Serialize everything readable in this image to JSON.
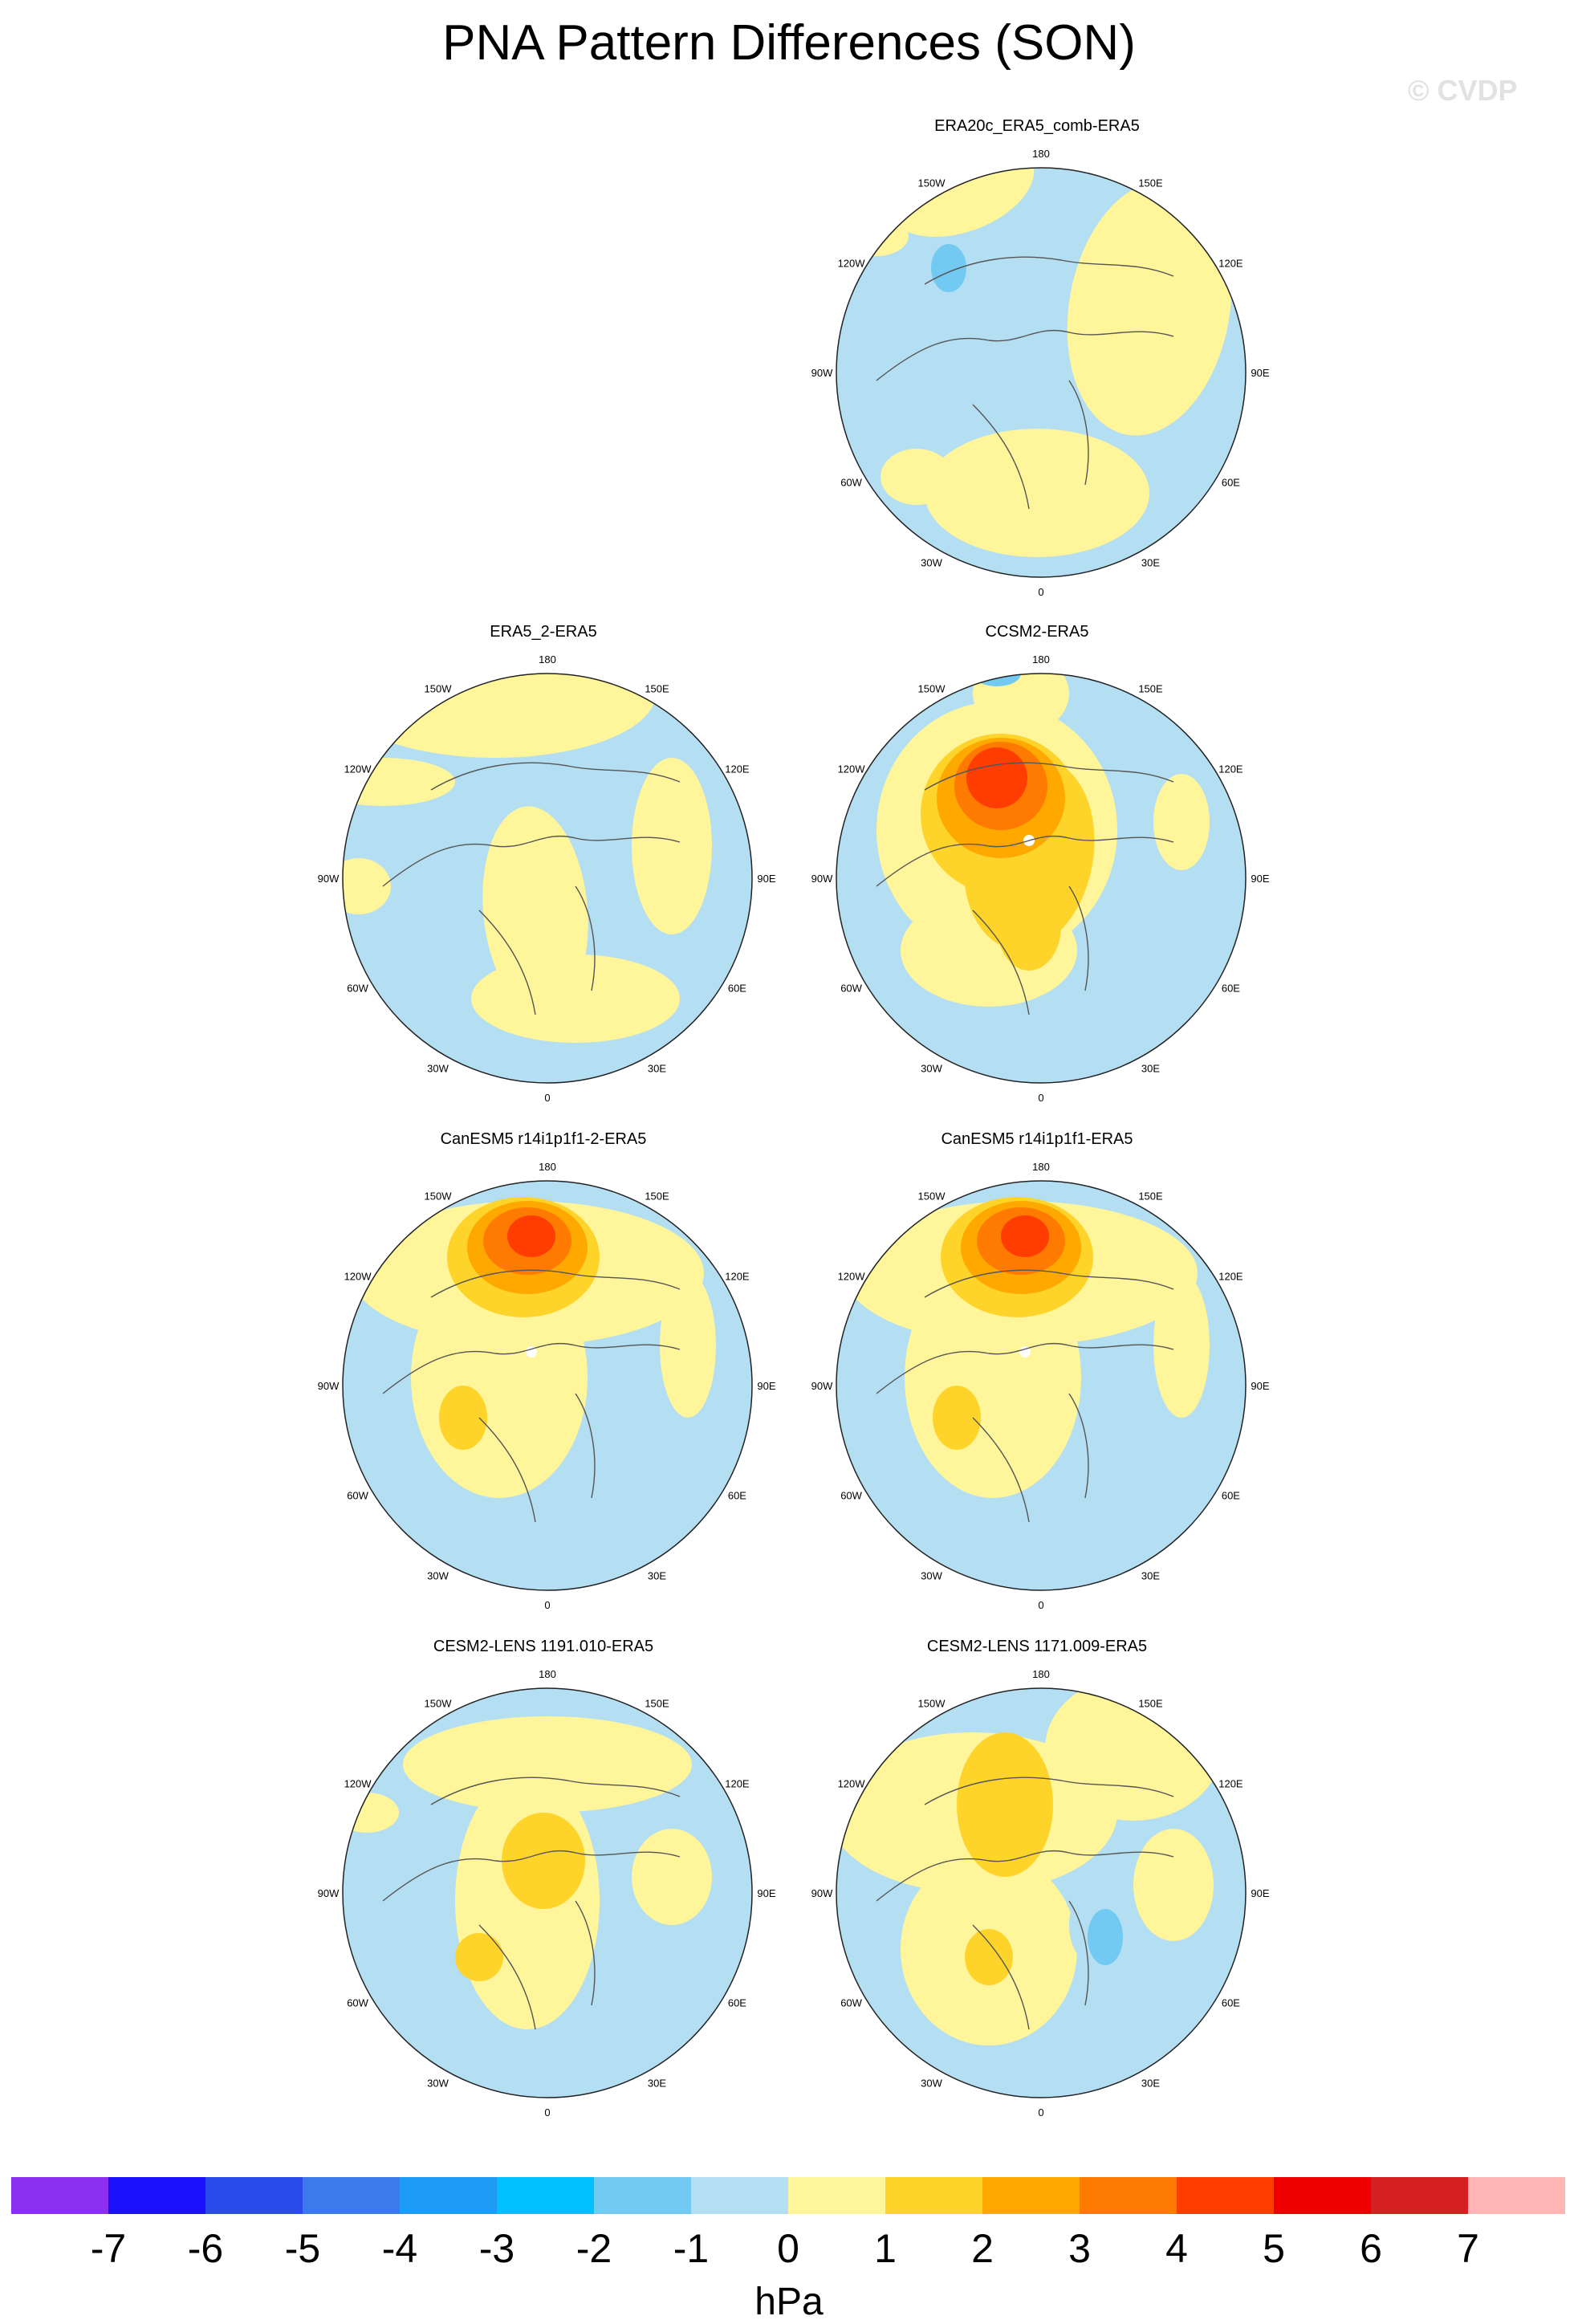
{
  "title": "PNA Pattern Differences (SON)",
  "watermark": "© CVDP",
  "panels": [
    {
      "id": "p1",
      "title": "ERA20c_ERA5_comb-ERA5",
      "variant": "era20c"
    },
    {
      "id": "p2",
      "title": "ERA5_2-ERA5",
      "variant": "era5_2"
    },
    {
      "id": "p3",
      "title": "CCSM2-ERA5",
      "variant": "ccsm2"
    },
    {
      "id": "p4",
      "title": "CanESM5 r14i1p1f1-2-ERA5",
      "variant": "canesm"
    },
    {
      "id": "p5",
      "title": "CanESM5 r14i1p1f1-ERA5",
      "variant": "canesm"
    },
    {
      "id": "p6",
      "title": "CESM2-LENS 1191.010-ERA5",
      "variant": "cesm_a"
    },
    {
      "id": "p7",
      "title": "CESM2-LENS 1171.009-ERA5",
      "variant": "cesm_b"
    }
  ],
  "longitude_labels": [
    "180",
    "150E",
    "120E",
    "90E",
    "60E",
    "30E",
    "0",
    "30W",
    "60W",
    "90W",
    "120W",
    "150W"
  ],
  "colorbar": {
    "colors": [
      "#8b2ff0",
      "#1a10fa",
      "#2a4bea",
      "#3b7ae8",
      "#1e9bf5",
      "#00c0ff",
      "#72c9f2",
      "#b4def2",
      "#fff59a",
      "#ffd42a",
      "#ffa800",
      "#ff7a00",
      "#ff3d00",
      "#ee0000",
      "#d42020",
      "#ffb6b4"
    ],
    "ticks": [
      "-7",
      "-6",
      "-5",
      "-4",
      "-3",
      "-2",
      "-1",
      "0",
      "1",
      "2",
      "3",
      "4",
      "5",
      "6",
      "7"
    ],
    "units": "hPa"
  }
}
